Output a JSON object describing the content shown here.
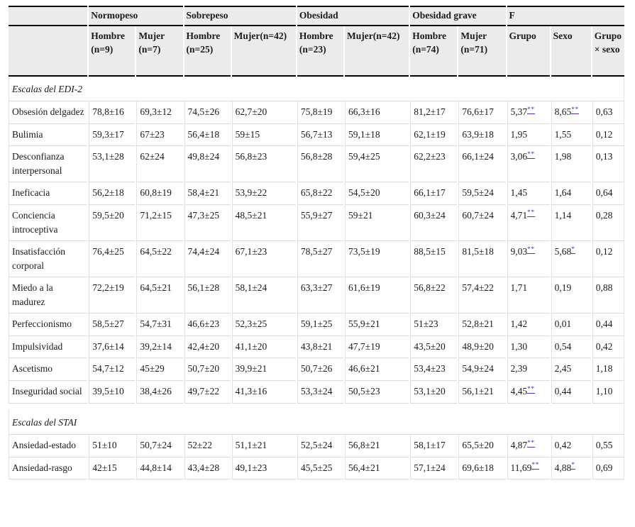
{
  "table": {
    "header": {
      "groups": [
        {
          "label": "",
          "span": 1
        },
        {
          "label": "Normopeso",
          "span": 2
        },
        {
          "label": "Sobrepeso",
          "span": 2
        },
        {
          "label": "Obesidad",
          "span": 2
        },
        {
          "label": "Obesidad grave",
          "span": 2
        },
        {
          "label": "F",
          "span": 3
        }
      ],
      "columns": [
        "Hombre (n=9)",
        "Mujer (n=7)",
        "Hombre (n=25)",
        "Mujer(n=42)",
        "Hombre (n=23)",
        "Mujer(n=42)",
        "Hombre (n=74)",
        "Mujer (n=71)",
        "Grupo",
        "Sexo",
        "Grupo × sexo"
      ]
    },
    "sections": [
      {
        "title": "Escalas del EDI-2",
        "spacer_before": false,
        "rows": [
          {
            "label": "Obsesión delgadez",
            "cells": [
              "78,8±16",
              "69,3±12",
              "74,5±26",
              "62,7±20",
              "75,8±19",
              "66,3±16",
              "81,2±17",
              "76,6±17",
              {
                "t": "5,37",
                "m": "**"
              },
              {
                "t": "8,65",
                "m": "**"
              },
              "0,63"
            ]
          },
          {
            "label": "Bulimia",
            "cells": [
              "59,3±17",
              "67±23",
              "56,4±18",
              "59±15",
              "56,7±13",
              "59,1±18",
              "62,1±19",
              "63,9±18",
              "1,95",
              "1,55",
              "0,12"
            ]
          },
          {
            "label": "Desconfianza interpersonal",
            "cells": [
              "53,1±28",
              "62±24",
              "49,8±24",
              "56,8±23",
              "56,8±28",
              "59,4±25",
              "62,2±23",
              "66,1±24",
              {
                "t": "3,06",
                "m": "**"
              },
              "1,98",
              "0,13"
            ]
          },
          {
            "label": "Ineficacia",
            "cells": [
              "56,2±18",
              "60,8±19",
              "58,4±21",
              "53,9±22",
              "65,8±22",
              "54,5±20",
              "66,1±17",
              "59,5±24",
              "1,45",
              "1,64",
              "0,64"
            ]
          },
          {
            "label": "Conciencia introceptiva",
            "cells": [
              "59,5±20",
              "71,2±15",
              "47,3±25",
              "48,5±21",
              "55,9±27",
              "59±21",
              "60,3±24",
              "60,7±24",
              {
                "t": "4,71",
                "m": "**"
              },
              "1,14",
              "0,28"
            ]
          },
          {
            "label": "Insatisfacción corporal",
            "cells": [
              "76,4±25",
              "64,5±22",
              "74,4±24",
              "67,1±23",
              "78,5±27",
              "73,5±19",
              "88,5±15",
              "81,5±18",
              {
                "t": "9,03",
                "m": "**"
              },
              {
                "t": "5,68",
                "m": "*"
              },
              "0,12"
            ]
          },
          {
            "label": "Miedo a la madurez",
            "cells": [
              "72,2±19",
              "64,5±21",
              "56,1±28",
              "58,1±24",
              "63,3±27",
              "61,6±19",
              "56,8±22",
              "57,4±22",
              "1,71",
              "0,19",
              "0,88"
            ]
          },
          {
            "label": "Perfeccionismo",
            "cells": [
              "58,5±27",
              "54,7±31",
              "46,6±23",
              "52,3±25",
              "59,1±25",
              "55,9±21",
              "51±23",
              "52,8±21",
              "1,42",
              "0,01",
              "0,44"
            ]
          },
          {
            "label": "Impulsividad",
            "cells": [
              "37,6±14",
              "39,2±14",
              "42,4±20",
              "41,1±20",
              "43,8±21",
              "47,7±19",
              "43,5±20",
              "48,9±20",
              "1,30",
              "0,54",
              "0,42"
            ]
          },
          {
            "label": "Ascetismo",
            "cells": [
              "54,7±12",
              "45±29",
              "50,7±20",
              "39,9±21",
              "50,7±26",
              "46,6±21",
              "53,4±23",
              "54,9±24",
              "2,39",
              "2,45",
              "1,18"
            ]
          },
          {
            "label": "Inseguridad social",
            "cells": [
              "39,5±10",
              "38,4±26",
              "49,7±22",
              "41,3±16",
              "53,3±24",
              "50,5±23",
              "53,1±20",
              "56,1±21",
              {
                "t": "4,45",
                "m": "**"
              },
              "0,44",
              "1,10"
            ]
          }
        ]
      },
      {
        "title": "Escalas del STAI",
        "spacer_before": true,
        "rows": [
          {
            "label": "Ansiedad-estado",
            "cells": [
              "51±10",
              "50,7±24",
              "52±22",
              "51,1±21",
              "52,5±24",
              "56,8±21",
              "58,1±17",
              "65,5±20",
              {
                "t": "4,87",
                "m": "**"
              },
              "0,42",
              "0,55"
            ]
          },
          {
            "label": "Ansiedad-rasgo",
            "cells": [
              "42±15",
              "44,8±14",
              "43,4±28",
              "49,1±23",
              "45,5±25",
              "56,4±21",
              "57,1±24",
              "69,6±18",
              {
                "t": "11,69",
                "m": "**"
              },
              {
                "t": "4,88",
                "m": "*"
              },
              "0,69"
            ]
          }
        ]
      }
    ],
    "colors": {
      "significance_link": "#3a3ab4",
      "header_bg": "#ebebeb",
      "grid_line": "#dddddd",
      "heavy_rule": "#000000"
    }
  }
}
